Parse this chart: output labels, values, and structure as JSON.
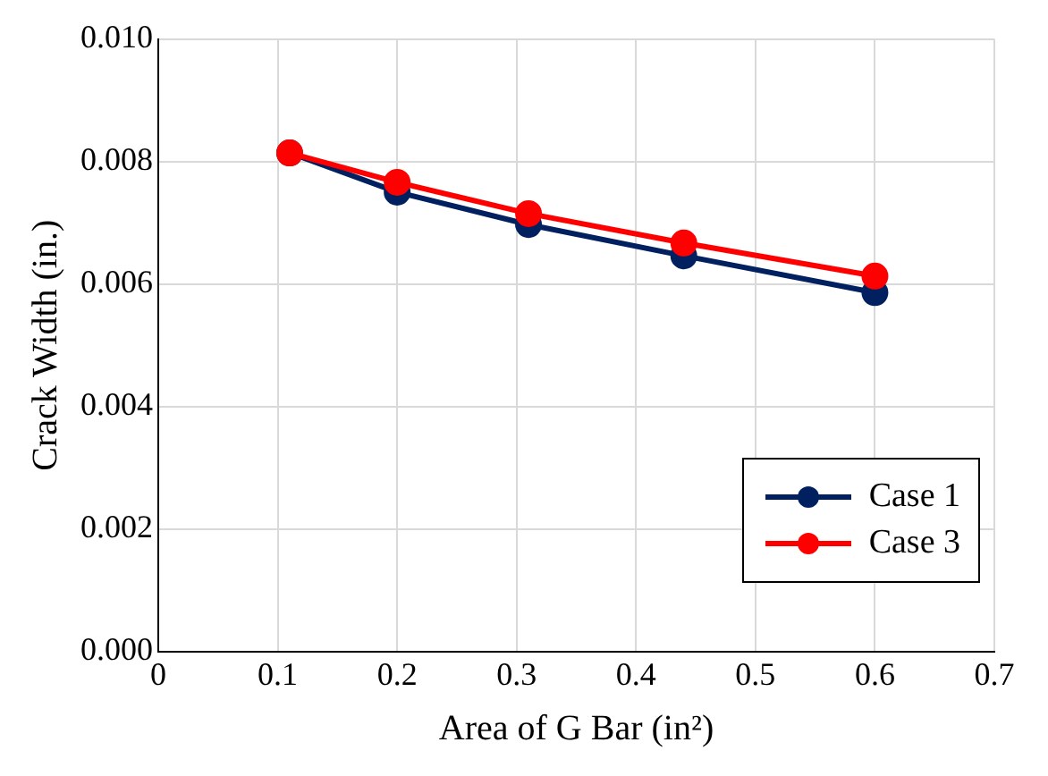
{
  "chart_data": {
    "type": "line",
    "xlabel": "Area of G Bar (in²)",
    "ylabel": "Crack Width (in.)",
    "series": [
      {
        "name": "Case 1",
        "color": "#002060",
        "x": [
          0.11,
          0.2,
          0.31,
          0.44,
          0.6
        ],
        "values": [
          0.00814,
          0.0075,
          0.00697,
          0.00646,
          0.00586
        ]
      },
      {
        "name": "Case 3",
        "color": "#ff0000",
        "x": [
          0.11,
          0.2,
          0.31,
          0.44,
          0.6
        ],
        "values": [
          0.00814,
          0.00766,
          0.00715,
          0.00667,
          0.00613
        ]
      }
    ],
    "xlim": [
      0,
      0.7
    ],
    "xticks": [
      0,
      0.1,
      0.2,
      0.3,
      0.4,
      0.5,
      0.6,
      0.7
    ],
    "ylim": [
      0,
      0.01
    ],
    "yticks": [
      {
        "value": 0,
        "label": "0.000"
      },
      {
        "value": 0.002,
        "label": "0.002"
      },
      {
        "value": 0.004,
        "label": "0.004"
      },
      {
        "value": 0.006,
        "label": "0.006"
      },
      {
        "value": 0.008,
        "label": "0.008"
      },
      {
        "value": 0.01,
        "label": "0.010"
      }
    ],
    "grid": true,
    "legend": "bottom right",
    "marker": "circle",
    "line_style": "solid"
  }
}
